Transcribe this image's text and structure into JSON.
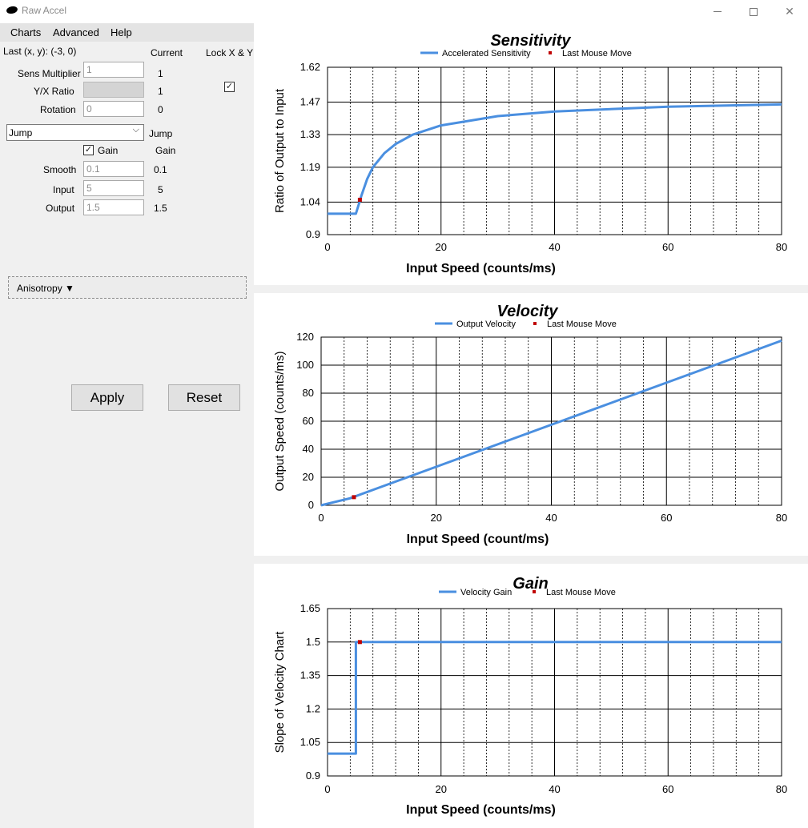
{
  "window": {
    "title": "Raw Accel"
  },
  "menu": {
    "items": [
      "Charts",
      "Advanced",
      "Help"
    ]
  },
  "form": {
    "last_xy": "Last (x, y): (-3, 0)",
    "current_header": "Current",
    "lock_header": "Lock X & Y",
    "sens_label": "Sens Multiplier",
    "sens_value": "1",
    "sens_current": "1",
    "yx_label": "Y/X Ratio",
    "yx_current": "1",
    "rotation_label": "Rotation",
    "rotation_value": "0",
    "rotation_current": "0",
    "mode_value": "Jump",
    "mode_current": "Jump",
    "gain_label": "Gain",
    "gain_current": "Gain",
    "smooth_label": "Smooth",
    "smooth_value": "0.1",
    "smooth_current": "0.1",
    "input_label": "Input",
    "input_value": "5",
    "input_current": "5",
    "output_label": "Output",
    "output_value": "1.5",
    "output_current": "1.5",
    "anisotropy_label": "Anisotropy ▼",
    "apply_label": "Apply",
    "reset_label": "Reset"
  },
  "colors": {
    "series": "#4a8fe0",
    "last_move": "#c00000"
  },
  "chart_data": [
    {
      "type": "line",
      "title": "Sensitivity",
      "xlabel": "Input Speed (counts/ms)",
      "ylabel": "Ratio of Output to Input",
      "legend": [
        "Accelerated Sensitivity",
        "Last Mouse Move"
      ],
      "xlim": [
        0,
        80
      ],
      "ylim": [
        0.9,
        1.62
      ],
      "xticks": [
        "0",
        "20",
        "40",
        "60",
        "80"
      ],
      "yticks": [
        "0.9",
        "1.04",
        "1.19",
        "1.33",
        "1.47",
        "1.62"
      ],
      "series": [
        {
          "x": [
            0,
            5,
            5.5,
            6,
            7,
            8,
            10,
            12,
            15,
            20,
            30,
            40,
            60,
            80
          ],
          "y": [
            0.99,
            0.99,
            1.03,
            1.07,
            1.14,
            1.19,
            1.25,
            1.29,
            1.33,
            1.37,
            1.41,
            1.43,
            1.45,
            1.46
          ]
        }
      ],
      "point": {
        "x": 5.7,
        "y": 1.05
      }
    },
    {
      "type": "line",
      "title": "Velocity",
      "xlabel": "Input Speed (count/ms)",
      "ylabel": "Output Speed (counts/ms)",
      "legend": [
        "Output Velocity",
        "Last Mouse Move"
      ],
      "xlim": [
        0,
        80
      ],
      "ylim": [
        0,
        120
      ],
      "xticks": [
        "0",
        "20",
        "40",
        "60",
        "80"
      ],
      "yticks": [
        "0",
        "20",
        "40",
        "60",
        "80",
        "100",
        "120"
      ],
      "series": [
        {
          "x": [
            0,
            5,
            10,
            20,
            40,
            60,
            80
          ],
          "y": [
            0,
            5,
            12.5,
            27.5,
            57.5,
            87.5,
            117.5
          ]
        }
      ],
      "point": {
        "x": 5.7,
        "y": 5.8
      }
    },
    {
      "type": "line",
      "title": "Gain",
      "xlabel": "Input Speed (counts/ms)",
      "ylabel": "Slope of Velocity Chart",
      "legend": [
        "Velocity Gain",
        "Last Mouse Move"
      ],
      "xlim": [
        0,
        80
      ],
      "ylim": [
        0.9,
        1.65
      ],
      "xticks": [
        "0",
        "20",
        "40",
        "60",
        "80"
      ],
      "yticks": [
        "0.9",
        "1.05",
        "1.2",
        "1.35",
        "1.5",
        "1.65"
      ],
      "series": [
        {
          "x": [
            0,
            5,
            5,
            80
          ],
          "y": [
            1.0,
            1.0,
            1.5,
            1.5
          ]
        }
      ],
      "point": {
        "x": 5.7,
        "y": 1.5
      }
    }
  ]
}
